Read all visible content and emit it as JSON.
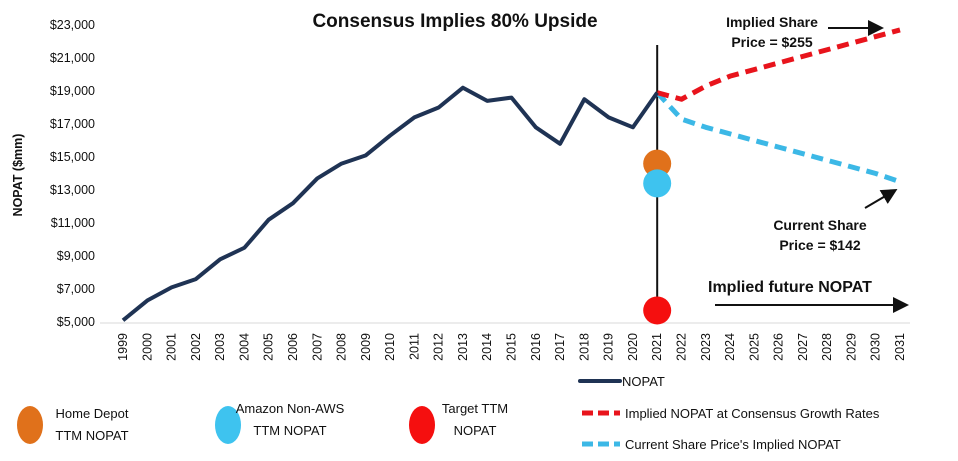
{
  "chart_data": {
    "type": "line",
    "title": "Consensus Implies 80% Upside",
    "xlabel": "",
    "ylabel": "NOPAT ($mm)",
    "ylim": [
      5000,
      23000
    ],
    "y_ticks": [
      "$5,000",
      "$7,000",
      "$9,000",
      "$11,000",
      "$13,000",
      "$15,000",
      "$17,000",
      "$19,000",
      "$21,000",
      "$23,000"
    ],
    "y_tick_values": [
      5000,
      7000,
      9000,
      11000,
      13000,
      15000,
      17000,
      19000,
      21000,
      23000
    ],
    "x_ticks": [
      "1999",
      "2000",
      "2001",
      "2002",
      "2003",
      "2004",
      "2005",
      "2006",
      "2007",
      "2008",
      "2009",
      "2010",
      "2011",
      "2012",
      "2013",
      "2014",
      "2015",
      "2016",
      "2017",
      "2018",
      "2019",
      "2020",
      "2021",
      "2022",
      "2023",
      "2024",
      "2025",
      "2026",
      "2027",
      "2028",
      "2029",
      "2030",
      "2031"
    ],
    "grid": false,
    "series": [
      {
        "name": "NOPAT",
        "color": "#1f3354",
        "style": "solid",
        "x": [
          1999,
          2000,
          2001,
          2002,
          2003,
          2004,
          2005,
          2006,
          2007,
          2008,
          2009,
          2010,
          2011,
          2012,
          2013,
          2014,
          2015,
          2016,
          2017,
          2018,
          2019,
          2020,
          2021
        ],
        "values": [
          5100,
          6300,
          7100,
          7600,
          8800,
          9500,
          11200,
          12200,
          13700,
          14600,
          15100,
          16300,
          17400,
          18000,
          19200,
          18400,
          18600,
          16800,
          15800,
          18500,
          17400,
          16800,
          18900
        ]
      },
      {
        "name": "Implied NOPAT at Consensus Growth Rates",
        "color": "#e8141c",
        "style": "dashed",
        "x": [
          2021,
          2022,
          2023,
          2024,
          2025,
          2026,
          2027,
          2028,
          2029,
          2030,
          2031
        ],
        "values": [
          18900,
          18500,
          19300,
          19900,
          20300,
          20700,
          21100,
          21500,
          21900,
          22300,
          22700
        ]
      },
      {
        "name": "Current Share Price's Implied NOPAT",
        "color": "#3cb8e6",
        "style": "dashed",
        "x": [
          2021,
          2022,
          2023,
          2024,
          2025,
          2026,
          2027,
          2028,
          2029,
          2030,
          2031
        ],
        "values": [
          18900,
          17300,
          16800,
          16400,
          16000,
          15600,
          15200,
          14800,
          14400,
          14000,
          13500
        ]
      }
    ],
    "points": [
      {
        "name": "Home Depot TTM NOPAT",
        "label_lines": [
          "Home Depot",
          "TTM NOPAT"
        ],
        "x": 2021,
        "value": 14600,
        "color": "#e0711b"
      },
      {
        "name": "Amazon Non-AWS TTM NOPAT",
        "label_lines": [
          "Amazon Non-AWS",
          "TTM NOPAT"
        ],
        "x": 2021,
        "value": 13400,
        "color": "#3ec3ef"
      },
      {
        "name": "Target TTM NOPAT",
        "label_lines": [
          "Target TTM",
          "NOPAT"
        ],
        "x": 2021,
        "value": 5700,
        "color": "#f50f0f"
      }
    ],
    "divider_year": 2021,
    "annotations": {
      "implied": [
        "Implied Share",
        "Price = $255"
      ],
      "current": [
        "Current Share",
        "Price = $142"
      ],
      "future": "Implied future NOPAT"
    },
    "legend_placement": "bottom"
  }
}
